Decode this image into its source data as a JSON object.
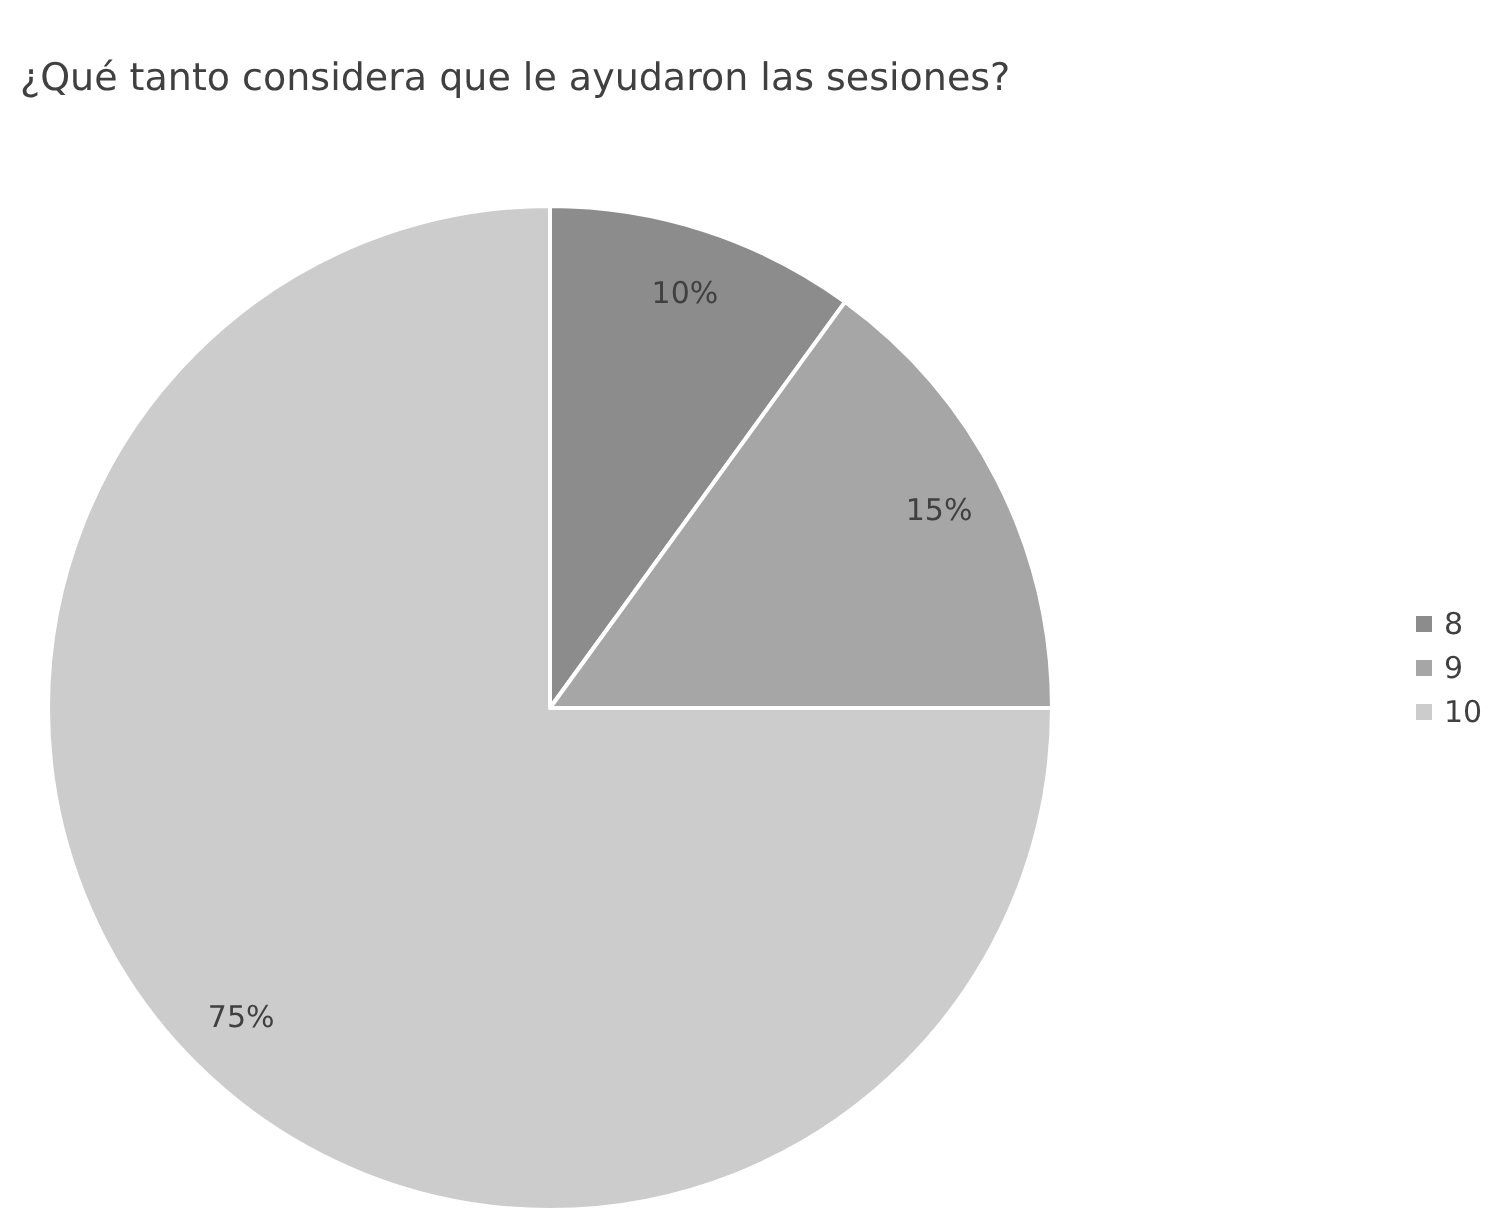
{
  "chart_data": {
    "type": "pie",
    "title": "¿Qué tanto considera que le ayudaron las sesiones?",
    "categories": [
      "8",
      "9",
      "10"
    ],
    "values": [
      10,
      15,
      75
    ],
    "colors": [
      "#8c8c8c",
      "#a6a6a6",
      "#cccccc"
    ],
    "value_labels": [
      "10%",
      "15%",
      "75%"
    ],
    "legend": "right"
  }
}
